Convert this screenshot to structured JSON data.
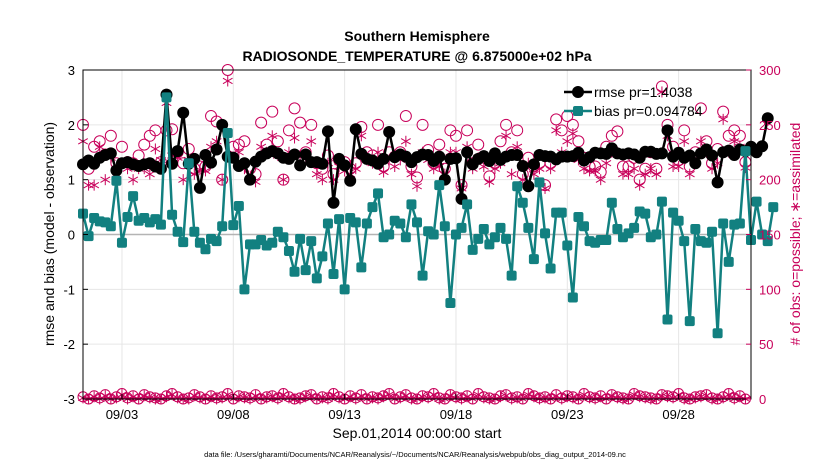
{
  "chart_data": {
    "type": "line",
    "title": "Southern Hemisphere",
    "subtitle": "RADIOSONDE_TEMPERATURE @ 6.875000e+02 hPa",
    "xlabel": "Sep.01,2014 00:00:00 start",
    "ylabel": "rmse and bias (model - observation)",
    "ylabel_right": "# of obs: o=possible; ∗=assimilated",
    "footnote": "data file: /Users/gharamti/Documents/NCAR/Reanalysis/~/Documents/NCAR/Reanalysis/webpub/obs_diag_output_2014-09.nc",
    "x_ticks": [
      "09/03",
      "09/08",
      "09/13",
      "09/18",
      "09/23",
      "09/28"
    ],
    "x_tick_values": [
      3,
      8,
      13,
      18,
      23,
      28
    ],
    "xlim": [
      1.25,
      31.25
    ],
    "ylim": [
      -3,
      3
    ],
    "y_ticks": [
      -3,
      -2,
      -1,
      0,
      1,
      2,
      3
    ],
    "ylim_right": [
      0,
      300
    ],
    "y_ticks_right": [
      0,
      50,
      100,
      150,
      200,
      250,
      300
    ],
    "x_start": 1.25,
    "x_step": 0.25,
    "colors": {
      "rmse": "#000000",
      "bias": "#128080",
      "obs": "#c8005a",
      "zero": "#b4b4b4",
      "grid": "#e6e6e6"
    },
    "series": [
      {
        "name": "rmse",
        "legend": "rmse pr=1.4038",
        "values": [
          1.28,
          1.35,
          1.29,
          1.4,
          1.45,
          1.48,
          1.17,
          1.3,
          1.32,
          1.28,
          1.25,
          1.28,
          1.3,
          1.24,
          1.2,
          2.55,
          1.29,
          1.52,
          2.22,
          1.29,
          1.38,
          0.85,
          1.45,
          1.31,
          1.55,
          2.0,
          1.42,
          1.4,
          1.25,
          1.3,
          1.0,
          1.33,
          1.42,
          1.48,
          1.52,
          1.48,
          1.4,
          1.38,
          1.46,
          1.26,
          1.46,
          1.32,
          1.32,
          1.29,
          1.88,
          0.58,
          1.38,
          1.26,
          0.98,
          1.92,
          1.47,
          1.38,
          1.35,
          1.29,
          1.38,
          1.87,
          1.41,
          1.46,
          1.42,
          1.32,
          1.41,
          1.46,
          1.45,
          1.34,
          1.42,
          1.0,
          1.38,
          1.39,
          0.65,
          1.5,
          1.28,
          1.38,
          1.43,
          1.34,
          1.48,
          1.36,
          1.42,
          1.45,
          1.45,
          1.25,
          0.88,
          1.28,
          1.45,
          1.43,
          1.42,
          1.37,
          1.42,
          1.42,
          1.43,
          1.49,
          1.35,
          1.41,
          1.49,
          1.48,
          1.47,
          1.57,
          1.48,
          1.46,
          1.48,
          1.46,
          1.4,
          1.51,
          1.51,
          1.47,
          1.48,
          1.9,
          1.42,
          1.49,
          1.4,
          1.44,
          1.3,
          1.48,
          1.55,
          1.44,
          0.95,
          1.5,
          1.53,
          1.45,
          1.55,
          1.52,
          1.6,
          1.5,
          1.61,
          2.12
        ]
      },
      {
        "name": "bias",
        "legend": "bias pr=0.094784",
        "values": [
          0.38,
          -0.03,
          0.3,
          0.24,
          0.22,
          0.15,
          0.98,
          -0.15,
          0.32,
          0.7,
          0.25,
          0.3,
          0.22,
          0.28,
          0.18,
          2.5,
          0.36,
          0.05,
          -0.14,
          1.3,
          0.05,
          -0.15,
          -0.27,
          -0.08,
          -0.12,
          0.15,
          1.85,
          0.17,
          0.52,
          -1.0,
          -0.18,
          -0.18,
          -0.1,
          -0.2,
          -0.15,
          0.05,
          -0.05,
          -0.3,
          -0.68,
          -0.08,
          -0.65,
          -0.12,
          -0.8,
          -0.4,
          0.2,
          -0.72,
          0.28,
          -1.0,
          0.3,
          0.22,
          -0.6,
          0.2,
          0.5,
          0.75,
          -0.05,
          0.0,
          0.25,
          0.2,
          -0.05,
          0.55,
          0.22,
          -0.75,
          0.06,
          0.0,
          0.9,
          0.15,
          -1.25,
          0.0,
          0.12,
          0.55,
          -0.28,
          -0.08,
          0.1,
          -0.18,
          -0.05,
          0.12,
          -0.08,
          -0.75,
          0.88,
          0.58,
          0.12,
          -0.45,
          0.95,
          0.02,
          -0.62,
          0.4,
          0.4,
          -0.2,
          -1.15,
          0.32,
          0.15,
          -0.12,
          -0.15,
          -0.1,
          -0.1,
          0.58,
          0.1,
          -0.05,
          0.02,
          0.12,
          0.42,
          0.38,
          -0.05,
          0.0,
          0.6,
          -1.55,
          0.4,
          0.25,
          -0.12,
          -1.58,
          0.1,
          -0.12,
          -0.15,
          0.05,
          -1.8,
          0.2,
          -0.5,
          0.18,
          0.2,
          1.52,
          -0.1,
          0.6,
          0.0,
          -0.12,
          0.5
        ]
      }
    ],
    "obs_possible": {
      "legend": "o=possible",
      "values": [
        250,
        210,
        230,
        235,
        223,
        240,
        215,
        230,
        216,
        215,
        222,
        232,
        240,
        245,
        216,
        245,
        246,
        225,
        215,
        228,
        210,
        212,
        212,
        258,
        253,
        200,
        300,
        230,
        232,
        235,
        210,
        205,
        252,
        232,
        262,
        235,
        200,
        245,
        265,
        252,
        225,
        250,
        215,
        210,
        222,
        205,
        218,
        216,
        210,
        215,
        248,
        225,
        222,
        250,
        212,
        225,
        221,
        225,
        258,
        212,
        202,
        250,
        227,
        215,
        232,
        210,
        245,
        240,
        195,
        245,
        215,
        232,
        220,
        203,
        215,
        235,
        250,
        225,
        245,
        205,
        220,
        212,
        215,
        195,
        215,
        255,
        245,
        258,
        250,
        235,
        220,
        212,
        212,
        207,
        230,
        240,
        244,
        212,
        212,
        220,
        200,
        210,
        225,
        210,
        285,
        250,
        230,
        218,
        245,
        212,
        225,
        265,
        235,
        215,
        228,
        262,
        240,
        245,
        240,
        216
      ]
    },
    "obs_assimilated": {
      "legend": "∗=assimilated",
      "values": [
        235,
        195,
        195,
        230,
        200,
        220,
        205,
        215,
        210,
        200,
        210,
        210,
        205,
        228,
        218,
        270,
        222,
        220,
        200,
        218,
        205,
        209,
        208,
        230,
        235,
        200,
        290,
        220,
        225,
        210,
        200,
        198,
        230,
        225,
        240,
        222,
        200,
        225,
        238,
        222,
        219,
        235,
        205,
        200,
        215,
        200,
        212,
        208,
        205,
        210,
        240,
        218,
        215,
        225,
        207,
        218,
        212,
        218,
        235,
        205,
        194,
        225,
        218,
        210,
        212,
        205,
        225,
        225,
        192,
        230,
        210,
        220,
        212,
        198,
        210,
        215,
        240,
        205,
        230,
        200,
        215,
        205,
        210,
        192,
        210,
        245,
        225,
        235,
        242,
        218,
        210,
        208,
        208,
        200,
        215,
        225,
        225,
        205,
        205,
        210,
        195,
        205,
        210,
        205,
        280,
        240,
        212,
        212,
        235,
        205,
        215,
        235,
        225,
        210,
        215,
        255,
        225,
        235,
        230,
        211
      ]
    },
    "obs_bottom": {
      "possible": [
        2,
        0,
        3,
        1,
        4,
        0,
        2,
        5,
        1,
        3,
        0,
        4,
        2,
        1,
        0,
        3,
        5,
        2,
        0,
        1,
        4,
        2,
        0,
        3,
        1,
        2,
        5,
        0,
        3,
        2,
        1,
        4,
        0,
        2,
        3,
        1,
        5,
        2,
        0,
        1,
        3,
        4,
        0,
        2,
        1,
        5,
        2,
        0,
        3,
        1,
        4,
        0,
        2,
        1,
        3,
        5,
        0,
        2,
        4,
        1,
        0,
        3,
        2,
        5,
        1,
        0,
        4,
        2,
        1,
        3,
        0,
        5,
        2,
        1,
        0,
        3,
        4,
        1,
        2,
        0,
        5,
        3,
        1,
        2,
        0,
        4,
        1,
        3,
        2,
        0,
        5,
        2,
        1,
        3,
        0,
        4,
        2,
        1,
        0,
        5,
        3,
        2,
        1,
        0,
        4,
        3,
        2,
        5,
        1,
        0,
        2,
        3,
        4,
        1,
        0,
        2,
        5,
        1,
        3,
        0
      ],
      "assimilated": [
        1,
        0,
        2,
        0,
        3,
        0,
        1,
        4,
        0,
        2,
        0,
        3,
        1,
        0,
        0,
        2,
        4,
        1,
        0,
        0,
        3,
        1,
        0,
        2,
        0,
        1,
        4,
        0,
        2,
        1,
        0,
        3,
        0,
        1,
        2,
        0,
        4,
        1,
        0,
        0,
        2,
        3,
        0,
        1,
        0,
        4,
        1,
        0,
        2,
        0,
        3,
        0,
        1,
        0,
        2,
        4,
        0,
        1,
        3,
        0,
        0,
        2,
        1,
        4,
        0,
        0,
        3,
        1,
        0,
        2,
        0,
        4,
        1,
        0,
        0,
        2,
        3,
        0,
        1,
        0,
        4,
        2,
        0,
        1,
        0,
        3,
        0,
        2,
        1,
        0,
        4,
        1,
        0,
        2,
        0,
        3,
        1,
        0,
        0,
        4,
        2,
        1,
        0,
        0,
        3,
        2,
        1,
        4,
        0,
        0,
        1,
        2,
        3,
        0,
        0,
        1,
        4,
        0,
        2,
        0
      ]
    }
  }
}
